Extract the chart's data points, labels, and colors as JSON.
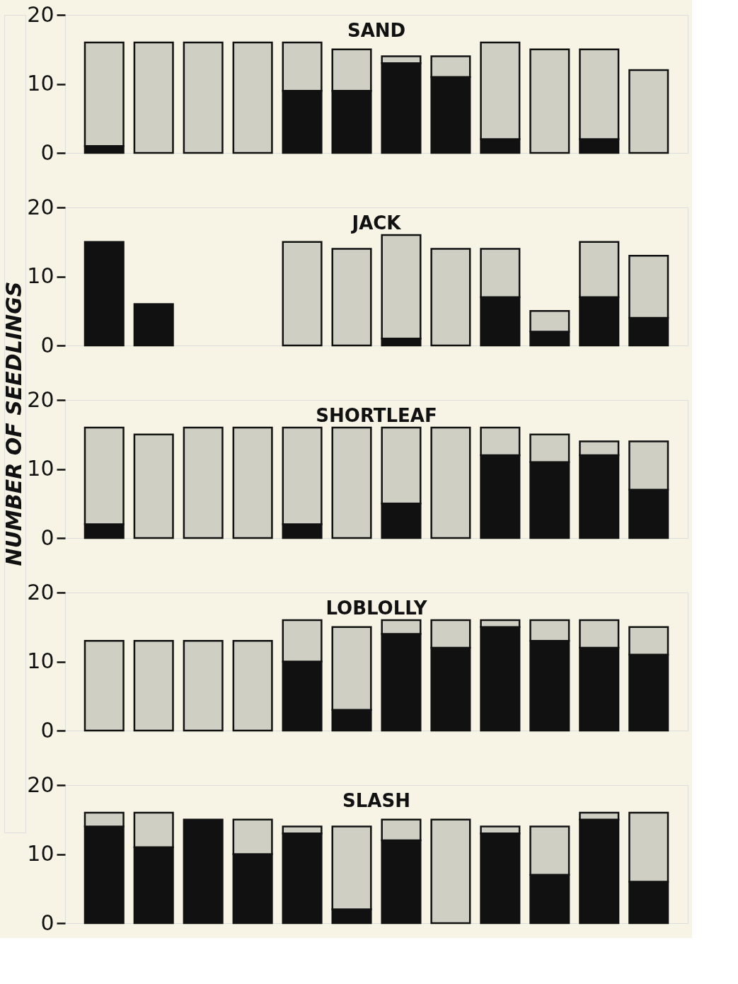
{
  "chart_data": [
    {
      "type": "bar",
      "title": "SAND",
      "stacked": true,
      "categories": [
        null,
        null,
        null,
        null,
        null,
        null,
        null,
        null,
        null,
        null,
        null,
        null
      ],
      "ylim": [
        0,
        20
      ],
      "yticks": [
        0,
        10,
        20
      ],
      "tick_labels": "y",
      "grid": false,
      "legend": false,
      "series": [
        {
          "color": "#111111",
          "values": [
            1,
            0,
            0,
            0,
            9,
            9,
            13,
            11,
            2,
            0,
            2,
            0
          ]
        },
        {
          "color": "#cfcfc4",
          "values": [
            15,
            16,
            16,
            16,
            7,
            6,
            1,
            3,
            14,
            15,
            13,
            12
          ]
        }
      ]
    },
    {
      "type": "bar",
      "title": "JACK",
      "stacked": true,
      "categories": [
        null,
        null,
        null,
        null,
        null,
        null,
        null,
        null,
        null,
        null,
        null,
        null
      ],
      "ylim": [
        0,
        20
      ],
      "yticks": [
        0,
        10,
        20
      ],
      "tick_labels": "y",
      "grid": false,
      "legend": false,
      "series": [
        {
          "color": "#111111",
          "values": [
            15,
            6,
            0,
            0,
            0,
            0,
            1,
            0,
            7,
            2,
            7,
            4
          ]
        },
        {
          "color": "#cfcfc4",
          "values": [
            0,
            0,
            0,
            0,
            15,
            14,
            15,
            14,
            7,
            3,
            8,
            9
          ]
        }
      ]
    },
    {
      "type": "bar",
      "title": "SHORTLEAF",
      "ylabel": "NUMBER OF SEEDLINGS",
      "stacked": true,
      "categories": [
        null,
        null,
        null,
        null,
        null,
        null,
        null,
        null,
        null,
        null,
        null,
        null
      ],
      "ylim": [
        0,
        20
      ],
      "yticks": [
        0,
        10,
        20
      ],
      "tick_labels": "y",
      "grid": false,
      "legend": false,
      "series": [
        {
          "color": "#111111",
          "values": [
            2,
            0,
            0,
            0,
            2,
            0,
            5,
            0,
            12,
            11,
            12,
            7
          ]
        },
        {
          "color": "#cfcfc4",
          "values": [
            14,
            15,
            16,
            16,
            14,
            16,
            11,
            16,
            4,
            4,
            2,
            7
          ]
        }
      ]
    },
    {
      "type": "bar",
      "title": "LOBLOLLY",
      "stacked": true,
      "categories": [
        null,
        null,
        null,
        null,
        null,
        null,
        null,
        null,
        null,
        null,
        null,
        null
      ],
      "ylim": [
        0,
        20
      ],
      "yticks": [
        0,
        10,
        20
      ],
      "tick_labels": "y",
      "grid": false,
      "legend": false,
      "series": [
        {
          "color": "#111111",
          "values": [
            0,
            0,
            0,
            0,
            10,
            3,
            14,
            12,
            15,
            13,
            12,
            11
          ]
        },
        {
          "color": "#cfcfc4",
          "values": [
            13,
            13,
            13,
            13,
            6,
            12,
            2,
            4,
            1,
            3,
            4,
            4
          ]
        }
      ]
    },
    {
      "type": "bar",
      "title": "SLASH",
      "stacked": true,
      "categories": [
        null,
        null,
        null,
        null,
        null,
        null,
        null,
        null,
        null,
        null,
        null,
        null
      ],
      "ylim": [
        0,
        20
      ],
      "yticks": [
        0,
        10,
        20
      ],
      "tick_labels": "y",
      "grid": false,
      "legend": false,
      "series": [
        {
          "color": "#111111",
          "values": [
            14,
            11,
            15,
            10,
            13,
            2,
            12,
            0,
            13,
            7,
            15,
            6
          ]
        },
        {
          "color": "#cfcfc4",
          "values": [
            2,
            5,
            0,
            5,
            1,
            12,
            3,
            15,
            1,
            7,
            1,
            10
          ]
        }
      ]
    }
  ]
}
